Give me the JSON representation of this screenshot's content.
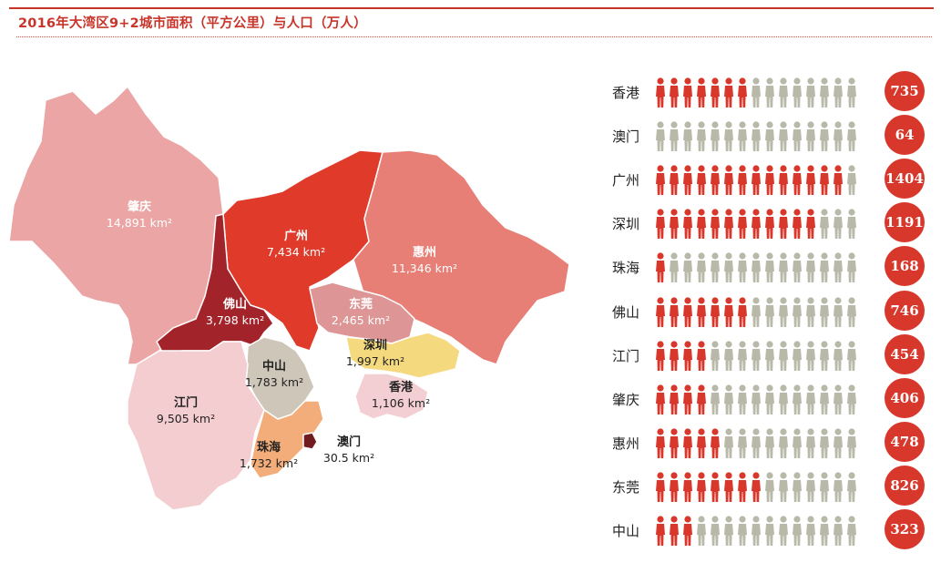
{
  "header": {
    "title": "2016年大湾区9+2城市面积（平方公里）与人口（万人）"
  },
  "colors": {
    "accent": "#c8352a",
    "person_filled": "#d8372b",
    "person_empty": "#b9b9a9"
  },
  "map": {
    "regions": [
      {
        "key": "zhaoqing",
        "name": "肇庆",
        "area": "14,891 km²",
        "color": "#eba5a5",
        "text_color": "#ffffff"
      },
      {
        "key": "guangzhou",
        "name": "广州",
        "area": "7,434 km²",
        "color": "#df3a2a",
        "text_color": "#ffffff"
      },
      {
        "key": "huizhou",
        "name": "惠州",
        "area": "11,346 km²",
        "color": "#e77f77",
        "text_color": "#ffffff"
      },
      {
        "key": "foshan",
        "name": "佛山",
        "area": "3,798 km²",
        "color": "#a3232a",
        "text_color": "#ffffff"
      },
      {
        "key": "dongguan",
        "name": "东莞",
        "area": "2,465 km²",
        "color": "#dd9596",
        "text_color": "#ffffff"
      },
      {
        "key": "shenzhen",
        "name": "深圳",
        "area": "1,997 km²",
        "color": "#f5d97f",
        "text_color": "#222222"
      },
      {
        "key": "zhongshan",
        "name": "中山",
        "area": "1,783 km²",
        "color": "#cec6b8",
        "text_color": "#222222"
      },
      {
        "key": "hongkong",
        "name": "香港",
        "area": "1,106 km²",
        "color": "#f3cfd3",
        "text_color": "#222222"
      },
      {
        "key": "jiangmen",
        "name": "江门",
        "area": "9,505 km²",
        "color": "#f3cdcf",
        "text_color": "#222222"
      },
      {
        "key": "zhuhai",
        "name": "珠海",
        "area": "1,732 km²",
        "color": "#f2ad7a",
        "text_color": "#222222"
      },
      {
        "key": "macau",
        "name": "澳门",
        "area": "30.5 km²",
        "color": "#6f1b1f",
        "text_color": "#222222"
      }
    ]
  },
  "population": {
    "rows": [
      {
        "name": "香港",
        "value": "735",
        "filled": 7
      },
      {
        "name": "澳门",
        "value": "64",
        "filled": 0
      },
      {
        "name": "广州",
        "value": "1404",
        "filled": 14
      },
      {
        "name": "深圳",
        "value": "1191",
        "filled": 12
      },
      {
        "name": "珠海",
        "value": "168",
        "filled": 1
      },
      {
        "name": "佛山",
        "value": "746",
        "filled": 7
      },
      {
        "name": "江门",
        "value": "454",
        "filled": 4
      },
      {
        "name": "肇庆",
        "value": "406",
        "filled": 4
      },
      {
        "name": "惠州",
        "value": "478",
        "filled": 5
      },
      {
        "name": "东莞",
        "value": "826",
        "filled": 8
      },
      {
        "name": "中山",
        "value": "323",
        "filled": 3
      }
    ],
    "total_icons": 15
  }
}
